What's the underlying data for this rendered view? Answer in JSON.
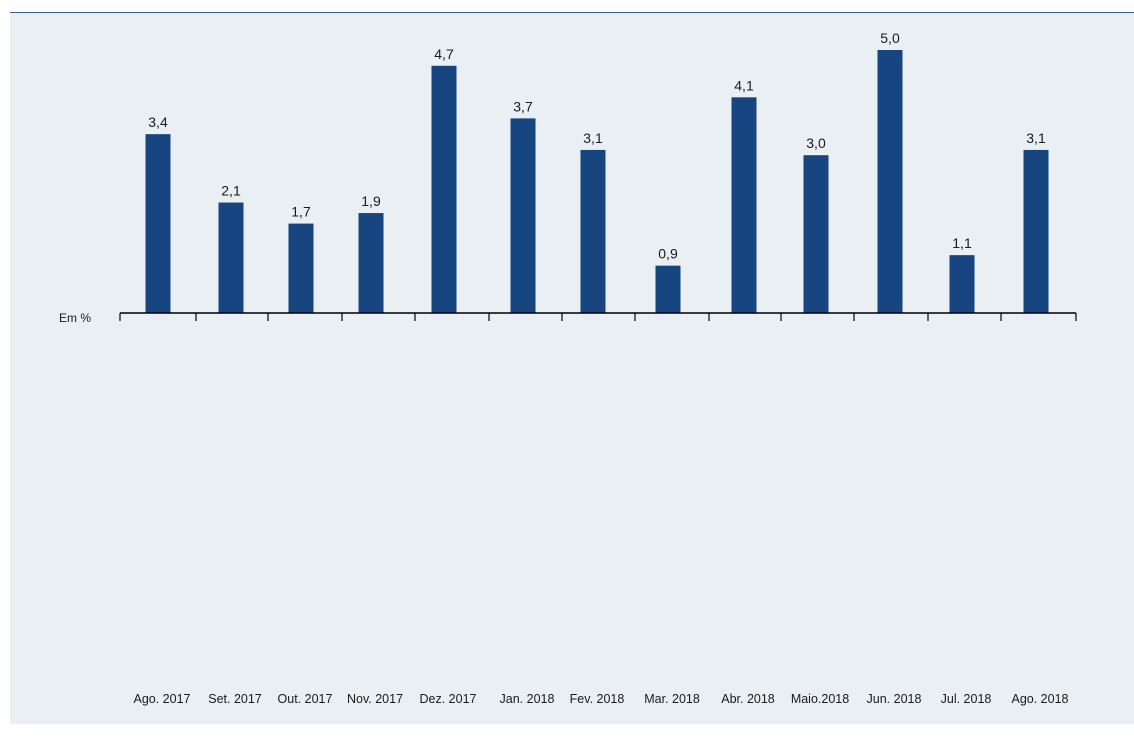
{
  "chart_data": {
    "type": "bar",
    "unit_label": "Em %",
    "categories": [
      "Ago. 2017",
      "Set. 2017",
      "Out. 2017",
      "Nov. 2017",
      "Dez. 2017",
      "Jan. 2018",
      "Fev. 2018",
      "Mar. 2018",
      "Abr. 2018",
      "Maio.2018",
      "Jun. 2018",
      "Jul. 2018",
      "Ago. 2018"
    ],
    "values": [
      3.4,
      2.1,
      1.7,
      1.9,
      4.7,
      3.7,
      3.1,
      0.9,
      4.1,
      3.0,
      5.0,
      1.1,
      3.1
    ],
    "value_labels": [
      "3,4",
      "2,1",
      "1,7",
      "1,9",
      "4,7",
      "3,7",
      "3,1",
      "0,9",
      "4,1",
      "3,0",
      "5,0",
      "1,1",
      "3,1"
    ],
    "ylim": [
      0,
      5.0
    ],
    "bar_color": "#17457f",
    "background_color": "#eaeff4",
    "grid": false,
    "legend": "none"
  }
}
